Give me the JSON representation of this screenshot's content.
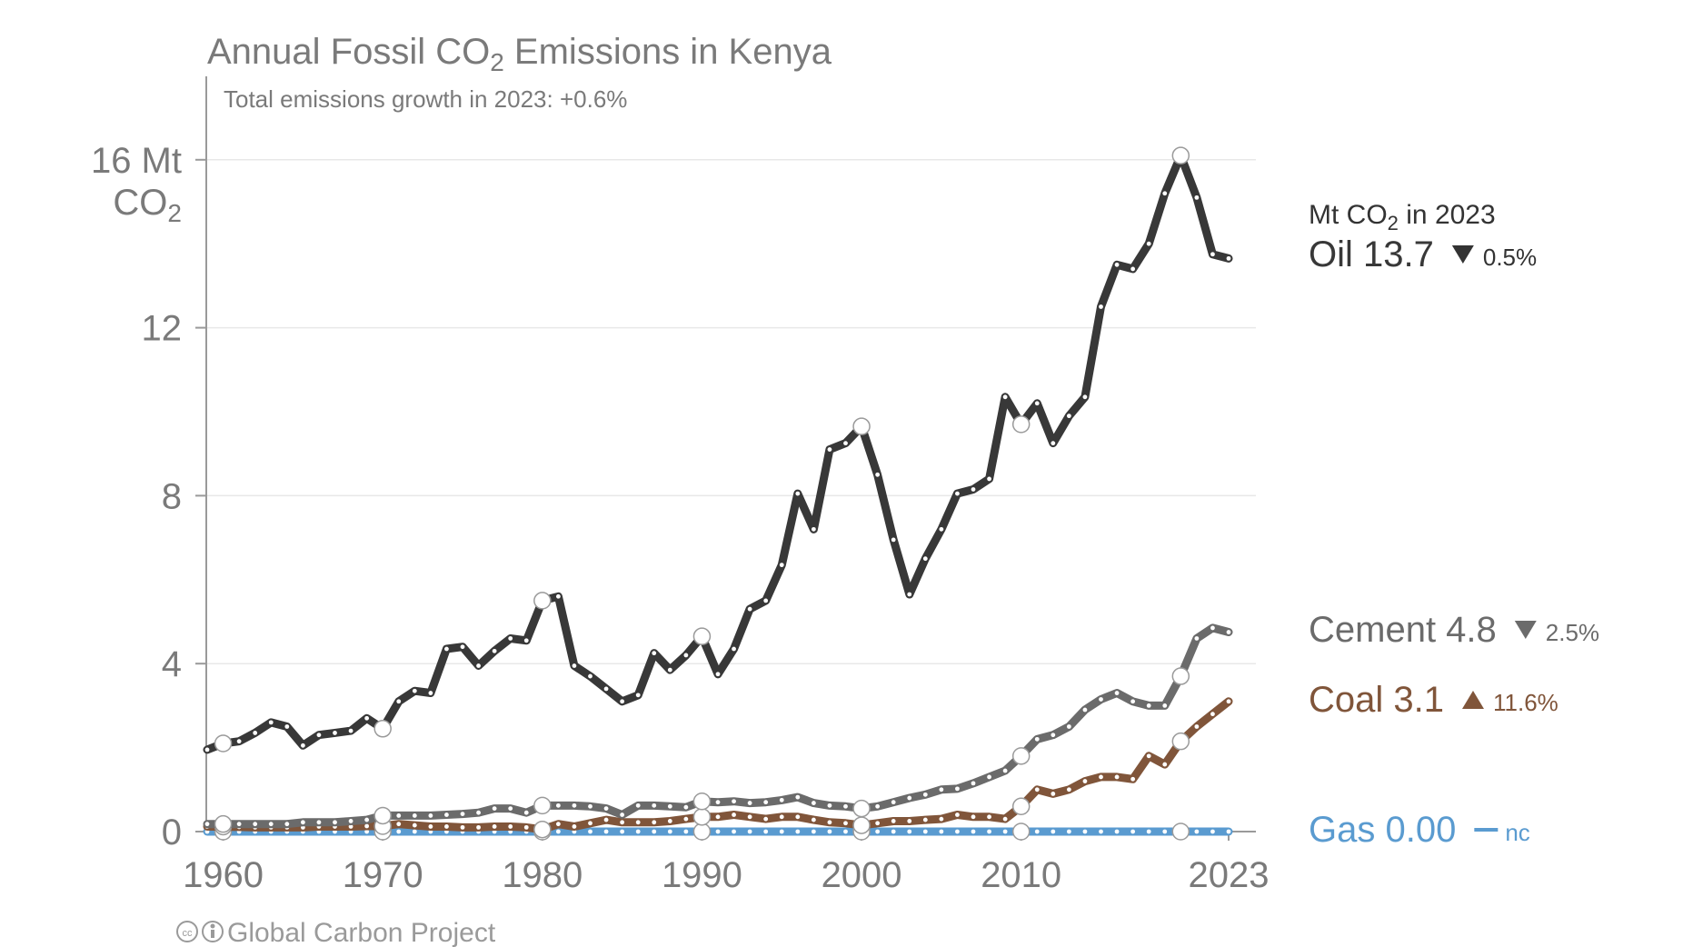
{
  "title": {
    "prefix": "Annual Fossil CO",
    "sub": "2",
    "suffix": " Emissions in Kenya"
  },
  "subtitle": "Total emissions growth in 2023: +0.6%",
  "credit": "Global Carbon Project",
  "unit_note": {
    "prefix": "Mt CO",
    "sub": "2",
    "suffix": " in 2023"
  },
  "y_unit": {
    "line1": "16 Mt",
    "line2_prefix": "CO",
    "line2_sub": "2"
  },
  "chart_data": {
    "type": "line",
    "title": "Annual Fossil CO2 Emissions in Kenya",
    "xlabel": "",
    "ylabel": "Mt CO2",
    "xlim": [
      1959,
      2023
    ],
    "ylim": [
      0,
      18
    ],
    "y_ticks": [
      0,
      4,
      8,
      12,
      16
    ],
    "y_tick_labels": [
      "0",
      "4",
      "8",
      "12",
      "16 Mt"
    ],
    "x_ticks": [
      1960,
      1970,
      1980,
      1990,
      2000,
      2010,
      2023
    ],
    "x_tick_labels": [
      "1960",
      "1970",
      "1980",
      "1990",
      "2000",
      "2010",
      "2023"
    ],
    "grid": true,
    "x": [
      1959,
      1960,
      1961,
      1962,
      1963,
      1964,
      1965,
      1966,
      1967,
      1968,
      1969,
      1970,
      1971,
      1972,
      1973,
      1974,
      1975,
      1976,
      1977,
      1978,
      1979,
      1980,
      1981,
      1982,
      1983,
      1984,
      1985,
      1986,
      1987,
      1988,
      1989,
      1990,
      1991,
      1992,
      1993,
      1994,
      1995,
      1996,
      1997,
      1998,
      1999,
      2000,
      2001,
      2002,
      2003,
      2004,
      2005,
      2006,
      2007,
      2008,
      2009,
      2010,
      2011,
      2012,
      2013,
      2014,
      2015,
      2016,
      2017,
      2018,
      2019,
      2020,
      2021,
      2022,
      2023
    ],
    "series": [
      {
        "name": "Gas",
        "color": "#5a9bd0",
        "value_label": "0.00",
        "change": "nc",
        "change_dir": "none",
        "values": [
          0,
          0,
          0,
          0,
          0,
          0,
          0,
          0,
          0,
          0,
          0,
          0,
          0,
          0,
          0,
          0,
          0,
          0,
          0,
          0,
          0,
          0,
          0,
          0,
          0,
          0,
          0,
          0,
          0,
          0,
          0,
          0,
          0,
          0,
          0,
          0,
          0,
          0,
          0,
          0,
          0,
          0,
          0,
          0,
          0,
          0,
          0,
          0,
          0,
          0,
          0,
          0,
          0,
          0,
          0,
          0,
          0,
          0,
          0,
          0,
          0,
          0,
          0,
          0,
          0
        ]
      },
      {
        "name": "Coal",
        "color": "#80553a",
        "value_label": "3.1",
        "change": "11.6%",
        "change_dir": "up",
        "values": [
          0.12,
          0.12,
          0.11,
          0.1,
          0.1,
          0.1,
          0.1,
          0.12,
          0.12,
          0.12,
          0.13,
          0.13,
          0.18,
          0.15,
          0.12,
          0.12,
          0.1,
          0.1,
          0.12,
          0.12,
          0.1,
          0.05,
          0.18,
          0.12,
          0.2,
          0.28,
          0.22,
          0.22,
          0.22,
          0.25,
          0.3,
          0.35,
          0.35,
          0.4,
          0.35,
          0.3,
          0.35,
          0.35,
          0.28,
          0.22,
          0.2,
          0.15,
          0.2,
          0.25,
          0.25,
          0.28,
          0.3,
          0.4,
          0.35,
          0.35,
          0.3,
          0.6,
          1.0,
          0.9,
          1.0,
          1.2,
          1.3,
          1.3,
          1.25,
          1.8,
          1.6,
          2.15,
          2.5,
          2.8,
          3.1
        ]
      },
      {
        "name": "Cement",
        "color": "#6b6b6b",
        "value_label": "4.8",
        "change": "2.5%",
        "change_dir": "down",
        "values": [
          0.18,
          0.18,
          0.18,
          0.18,
          0.18,
          0.18,
          0.22,
          0.22,
          0.22,
          0.25,
          0.28,
          0.38,
          0.38,
          0.38,
          0.38,
          0.4,
          0.42,
          0.45,
          0.55,
          0.55,
          0.45,
          0.62,
          0.62,
          0.62,
          0.6,
          0.55,
          0.4,
          0.62,
          0.62,
          0.6,
          0.58,
          0.72,
          0.7,
          0.72,
          0.68,
          0.7,
          0.75,
          0.82,
          0.68,
          0.62,
          0.6,
          0.55,
          0.6,
          0.7,
          0.8,
          0.88,
          1.0,
          1.02,
          1.15,
          1.3,
          1.45,
          1.8,
          2.2,
          2.3,
          2.5,
          2.9,
          3.15,
          3.3,
          3.1,
          3.0,
          3.0,
          3.7,
          4.6,
          4.85,
          4.75
        ]
      },
      {
        "name": "Oil",
        "color": "#383838",
        "value_label": "13.7",
        "change": "0.5%",
        "change_dir": "down",
        "values": [
          1.95,
          2.1,
          2.15,
          2.35,
          2.6,
          2.5,
          2.05,
          2.3,
          2.35,
          2.4,
          2.7,
          2.45,
          3.1,
          3.35,
          3.3,
          4.35,
          4.4,
          3.95,
          4.3,
          4.6,
          4.55,
          5.5,
          5.6,
          3.95,
          3.7,
          3.4,
          3.1,
          3.25,
          4.25,
          3.85,
          4.2,
          4.65,
          3.75,
          4.35,
          5.3,
          5.5,
          6.35,
          8.05,
          7.2,
          9.1,
          9.25,
          9.65,
          8.5,
          6.95,
          5.65,
          6.5,
          7.2,
          8.05,
          8.15,
          8.4,
          10.35,
          9.7,
          10.2,
          9.25,
          9.9,
          10.35,
          12.5,
          13.5,
          13.4,
          14.0,
          15.2,
          16.1,
          15.1,
          13.75,
          13.65
        ]
      }
    ],
    "highlighted_points_x": [
      1960,
      1970,
      1980,
      1990,
      2000,
      2010,
      2020
    ]
  }
}
